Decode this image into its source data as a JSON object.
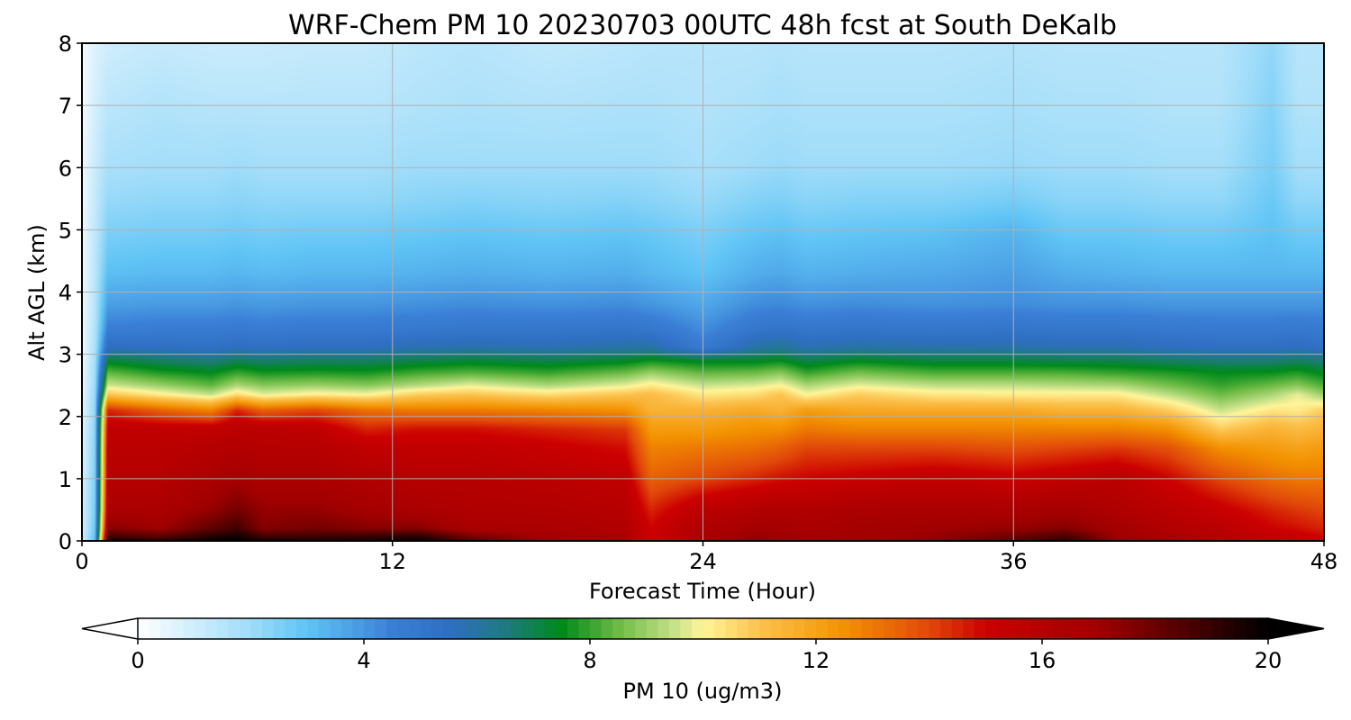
{
  "chart_data": {
    "type": "heatmap",
    "title": "WRF-Chem PM 10  20230703 00UTC 48h fcst at South DeKalb",
    "xlabel": "Forecast Time (Hour)",
    "ylabel": "Alt AGL (km)",
    "xlim": [
      0,
      48
    ],
    "ylim": [
      0,
      8
    ],
    "xticks": [
      0,
      12,
      24,
      36,
      48
    ],
    "yticks": [
      0,
      1,
      2,
      3,
      4,
      5,
      6,
      7,
      8
    ],
    "grid": true,
    "colorbar": {
      "label": "PM 10  (ug/m3)",
      "range": [
        0,
        20
      ],
      "ticks": [
        0,
        4,
        8,
        12,
        16,
        20
      ],
      "extend": "both",
      "orientation": "horizontal",
      "stops": [
        {
          "v": 0,
          "c": "#ffffff"
        },
        {
          "v": 2,
          "c": "#9fdcf9"
        },
        {
          "v": 3,
          "c": "#5fc4f5"
        },
        {
          "v": 4.5,
          "c": "#3a7fd6"
        },
        {
          "v": 5.5,
          "c": "#2f6fc2"
        },
        {
          "v": 6.5,
          "c": "#1f7a80"
        },
        {
          "v": 7.5,
          "c": "#008a1a"
        },
        {
          "v": 8.5,
          "c": "#6dbb45"
        },
        {
          "v": 9.5,
          "c": "#c7e28a"
        },
        {
          "v": 10,
          "c": "#fff59a"
        },
        {
          "v": 11,
          "c": "#fcc24e"
        },
        {
          "v": 12.5,
          "c": "#f39200"
        },
        {
          "v": 14,
          "c": "#e1480a"
        },
        {
          "v": 15,
          "c": "#cc0000"
        },
        {
          "v": 17,
          "c": "#a00000"
        },
        {
          "v": 18.5,
          "c": "#500000"
        },
        {
          "v": 20,
          "c": "#000000"
        }
      ]
    },
    "x": [
      0,
      0.5,
      1,
      3,
      5,
      6,
      7,
      9,
      11,
      13,
      15,
      18,
      21,
      22,
      24,
      26,
      27,
      28,
      30,
      33,
      36,
      38,
      40,
      42,
      44,
      46,
      47,
      48
    ],
    "y": [
      0,
      0.05,
      0.2,
      0.5,
      1.0,
      1.5,
      1.8,
      2.1,
      2.35,
      2.5,
      2.7,
      2.9,
      3.1,
      3.4,
      3.8,
      4.3,
      5.0,
      5.5,
      6.0,
      7.0,
      8.0
    ],
    "pbl_top_km": [
      0,
      0.3,
      2.5,
      2.25,
      2.15,
      2.3,
      2.15,
      2.25,
      2.2,
      2.35,
      2.4,
      2.3,
      2.55,
      2.8,
      2.4,
      2.4,
      2.55,
      2.25,
      2.5,
      2.35,
      2.3,
      2.25,
      2.25,
      2.05,
      1.8,
      2.1,
      2.25,
      1.9
    ],
    "z": [
      [
        1.0,
        3.0,
        20.0,
        19.5,
        20.0,
        20.0,
        19.8,
        19.5,
        19.5,
        19.8,
        18.5,
        17.0,
        16.5,
        15.0,
        16.5,
        17.5,
        17.0,
        16.8,
        17.0,
        17.5,
        18.5,
        19.2,
        17.5,
        17.0,
        16.5,
        16.0,
        15.8,
        15.5
      ],
      [
        1.0,
        3.0,
        19.0,
        18.5,
        19.5,
        19.8,
        19.0,
        19.0,
        19.2,
        19.5,
        18.0,
        16.8,
        16.5,
        15.0,
        16.5,
        17.2,
        17.0,
        16.8,
        16.8,
        17.2,
        18.0,
        18.8,
        17.0,
        16.5,
        16.0,
        15.5,
        15.3,
        15.0
      ],
      [
        0.8,
        2.8,
        17.5,
        17.0,
        18.2,
        18.8,
        17.5,
        17.8,
        17.5,
        17.5,
        16.5,
        16.5,
        16.2,
        15.0,
        16.3,
        16.8,
        16.8,
        16.5,
        16.8,
        17.0,
        17.2,
        17.5,
        16.8,
        16.2,
        15.8,
        15.0,
        14.8,
        14.5
      ],
      [
        0.8,
        2.6,
        16.5,
        16.5,
        17.2,
        17.8,
        17.2,
        17.2,
        16.8,
        16.5,
        16.3,
        16.2,
        16.0,
        14.5,
        15.8,
        16.2,
        16.3,
        16.2,
        16.5,
        16.5,
        16.5,
        16.8,
        16.3,
        15.8,
        15.2,
        14.5,
        14.2,
        14.0
      ],
      [
        0.7,
        2.5,
        16.0,
        16.0,
        16.5,
        16.8,
        16.5,
        16.5,
        16.2,
        16.0,
        16.0,
        15.8,
        15.5,
        13.5,
        14.0,
        14.5,
        14.8,
        15.0,
        15.2,
        15.5,
        15.2,
        15.5,
        15.8,
        15.0,
        14.0,
        13.2,
        13.0,
        13.0
      ],
      [
        0.6,
        2.4,
        15.8,
        15.8,
        16.0,
        16.2,
        16.0,
        16.0,
        15.5,
        15.5,
        15.5,
        15.2,
        14.8,
        12.8,
        13.0,
        13.2,
        13.5,
        14.0,
        14.0,
        14.0,
        13.8,
        14.0,
        14.2,
        13.8,
        12.5,
        12.2,
        12.0,
        12.2
      ],
      [
        0.6,
        2.3,
        15.5,
        15.5,
        15.5,
        15.8,
        15.8,
        15.6,
        14.5,
        14.8,
        14.8,
        14.5,
        14.2,
        12.2,
        12.2,
        12.5,
        12.5,
        13.0,
        12.8,
        12.8,
        12.8,
        12.8,
        12.8,
        12.5,
        10.8,
        11.5,
        11.2,
        11.5
      ],
      [
        0.5,
        2.2,
        14.5,
        13.5,
        12.8,
        14.5,
        13.5,
        14.0,
        13.2,
        13.0,
        13.0,
        12.8,
        12.5,
        11.5,
        11.5,
        11.8,
        11.5,
        12.2,
        11.8,
        11.8,
        11.8,
        11.5,
        11.5,
        10.8,
        9.5,
        10.3,
        10.2,
        10.8
      ],
      [
        0.5,
        2.1,
        11.0,
        10.2,
        9.5,
        10.5,
        9.8,
        10.2,
        10.0,
        10.8,
        11.0,
        10.5,
        11.0,
        11.2,
        10.3,
        10.5,
        11.0,
        10.0,
        10.8,
        10.3,
        10.2,
        10.2,
        10.2,
        9.4,
        8.5,
        9.2,
        9.8,
        9.0
      ],
      [
        0.4,
        2.0,
        9.6,
        9.0,
        8.4,
        9.2,
        8.8,
        9.0,
        8.8,
        9.3,
        9.8,
        9.2,
        9.8,
        10.2,
        9.5,
        9.7,
        10.0,
        9.2,
        9.8,
        9.4,
        9.4,
        9.3,
        9.2,
        8.6,
        8.0,
        8.5,
        8.8,
        8.2
      ],
      [
        0.4,
        1.9,
        8.4,
        7.8,
        7.5,
        8.0,
        7.7,
        7.8,
        7.7,
        8.1,
        8.3,
        8.0,
        8.5,
        9.0,
        8.4,
        8.5,
        8.8,
        8.0,
        8.6,
        8.2,
        8.2,
        8.2,
        8.0,
        7.8,
        7.5,
        7.6,
        7.8,
        7.4
      ],
      [
        0.3,
        1.8,
        7.2,
        6.8,
        6.5,
        6.9,
        6.7,
        6.8,
        6.8,
        7.0,
        7.2,
        7.0,
        7.3,
        7.6,
        7.3,
        7.3,
        7.5,
        7.0,
        7.4,
        7.1,
        7.1,
        7.0,
        7.0,
        6.8,
        6.6,
        6.6,
        6.8,
        6.5
      ],
      [
        0.3,
        1.7,
        5.6,
        5.5,
        5.4,
        5.6,
        5.5,
        5.6,
        5.6,
        5.8,
        5.9,
        5.8,
        6.0,
        6.0,
        4.8,
        6.0,
        6.2,
        5.8,
        6.0,
        5.9,
        5.9,
        5.8,
        5.8,
        5.6,
        5.5,
        5.5,
        5.6,
        5.4
      ],
      [
        0.3,
        1.6,
        4.6,
        4.7,
        4.7,
        4.8,
        4.7,
        4.8,
        4.8,
        4.9,
        5.0,
        5.0,
        5.1,
        5.0,
        4.2,
        5.0,
        5.2,
        5.0,
        5.1,
        5.0,
        5.1,
        5.0,
        5.0,
        4.9,
        4.8,
        4.8,
        4.9,
        4.8
      ],
      [
        0.3,
        1.5,
        3.8,
        3.9,
        3.9,
        4.0,
        3.9,
        4.0,
        4.0,
        4.1,
        4.2,
        4.1,
        4.2,
        4.0,
        3.6,
        4.2,
        4.3,
        4.1,
        4.2,
        4.1,
        4.2,
        4.1,
        4.1,
        4.0,
        4.0,
        4.0,
        4.0,
        4.0
      ],
      [
        0.3,
        1.4,
        3.1,
        3.2,
        3.2,
        3.3,
        3.2,
        3.3,
        3.3,
        3.4,
        3.5,
        3.4,
        3.5,
        3.3,
        3.0,
        3.5,
        3.6,
        3.4,
        3.5,
        3.6,
        3.8,
        3.5,
        3.4,
        3.3,
        3.3,
        3.3,
        3.3,
        3.3
      ],
      [
        0.3,
        1.3,
        2.5,
        2.6,
        2.6,
        2.7,
        2.6,
        2.7,
        2.7,
        2.8,
        2.9,
        2.8,
        2.9,
        2.8,
        2.5,
        2.9,
        3.0,
        2.8,
        2.9,
        3.0,
        3.3,
        2.8,
        2.8,
        2.7,
        2.7,
        3.0,
        2.7,
        2.7
      ],
      [
        0.3,
        1.2,
        2.1,
        2.2,
        2.2,
        2.3,
        2.2,
        2.2,
        2.2,
        2.3,
        2.4,
        2.3,
        2.4,
        2.3,
        2.1,
        2.4,
        2.5,
        2.3,
        2.4,
        2.4,
        2.6,
        2.3,
        2.3,
        2.2,
        2.2,
        2.8,
        2.2,
        2.2
      ],
      [
        0.3,
        1.1,
        1.8,
        1.9,
        1.9,
        2.0,
        1.9,
        1.9,
        1.9,
        2.0,
        2.0,
        2.0,
        2.0,
        2.0,
        1.8,
        2.0,
        2.1,
        2.0,
        2.0,
        2.0,
        2.1,
        2.0,
        2.0,
        1.9,
        1.9,
        2.6,
        1.9,
        1.9
      ],
      [
        0.2,
        0.9,
        1.4,
        1.6,
        1.5,
        1.5,
        1.5,
        1.5,
        1.5,
        1.6,
        1.7,
        1.6,
        1.7,
        1.7,
        1.6,
        1.7,
        1.8,
        1.7,
        1.7,
        1.7,
        1.8,
        1.7,
        1.7,
        1.6,
        1.6,
        2.4,
        1.6,
        1.6
      ],
      [
        0.2,
        0.7,
        1.0,
        1.2,
        1.1,
        1.1,
        1.1,
        1.2,
        1.2,
        1.4,
        1.5,
        1.3,
        1.4,
        1.5,
        1.5,
        1.5,
        1.6,
        1.5,
        1.5,
        1.5,
        1.6,
        1.5,
        1.5,
        1.5,
        1.5,
        2.2,
        1.5,
        1.5
      ]
    ]
  }
}
